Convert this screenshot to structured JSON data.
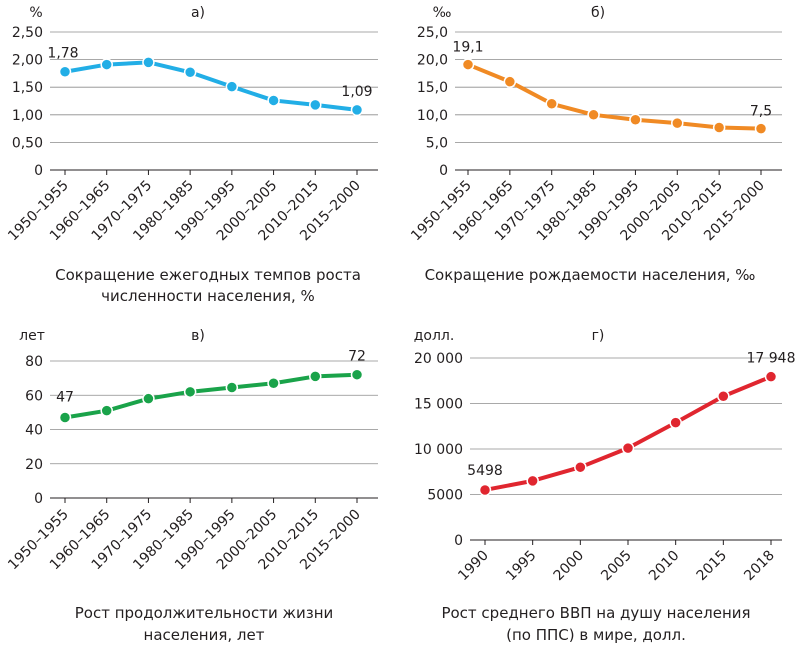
{
  "chart_data": [
    {
      "type": "line",
      "panel_label": "а)",
      "unit_label": "%",
      "categories": [
        "1950–1955",
        "1960–1965",
        "1970–1975",
        "1980–1985",
        "1990–1995",
        "2000–2005",
        "2010–2015",
        "2015–2000"
      ],
      "values": [
        1.78,
        1.91,
        1.95,
        1.77,
        1.51,
        1.26,
        1.18,
        1.09
      ],
      "data_labels": [
        {
          "index": 0,
          "text": "1,78"
        },
        {
          "index": 7,
          "text": "1,09"
        }
      ],
      "ylim": [
        0,
        2.5
      ],
      "yticks": [
        {
          "value": 0,
          "label": "0"
        },
        {
          "value": 0.5,
          "label": "0,50"
        },
        {
          "value": 1.0,
          "label": "1,00"
        },
        {
          "value": 1.5,
          "label": "1,50"
        },
        {
          "value": 2.0,
          "label": "2,00"
        },
        {
          "value": 2.5,
          "label": "2,50"
        }
      ],
      "grid": true,
      "color": "#22aee6",
      "caption": [
        "Сокращение ежегодных темпов роста",
        "численности населения, %"
      ]
    },
    {
      "type": "line",
      "panel_label": "б)",
      "unit_label": "‰",
      "categories": [
        "1950–1955",
        "1960–1965",
        "1970–1975",
        "1980–1985",
        "1990–1995",
        "2000–2005",
        "2010–2015",
        "2015–2000"
      ],
      "values": [
        19.1,
        16.0,
        12.0,
        10.0,
        9.1,
        8.5,
        7.7,
        7.5
      ],
      "data_labels": [
        {
          "index": 0,
          "text": "19,1"
        },
        {
          "index": 7,
          "text": "7,5"
        }
      ],
      "ylim": [
        0,
        25
      ],
      "yticks": [
        {
          "value": 0,
          "label": "0"
        },
        {
          "value": 5,
          "label": "5,0"
        },
        {
          "value": 10,
          "label": "10,0"
        },
        {
          "value": 15,
          "label": "15,0"
        },
        {
          "value": 20,
          "label": "20,0"
        },
        {
          "value": 25,
          "label": "25,0"
        }
      ],
      "grid": true,
      "color": "#f08a24",
      "caption": [
        "Сокращение рождаемости населения, ‰"
      ]
    },
    {
      "type": "line",
      "panel_label": "в)",
      "unit_label": "лет",
      "categories": [
        "1950–1955",
        "1960–1965",
        "1970–1975",
        "1980–1985",
        "1990–1995",
        "2000–2005",
        "2010–2015",
        "2015–2000"
      ],
      "values": [
        47,
        51,
        58,
        62,
        64.5,
        67,
        71,
        72
      ],
      "data_labels": [
        {
          "index": 0,
          "text": "47"
        },
        {
          "index": 7,
          "text": "72"
        }
      ],
      "ylim": [
        0,
        80
      ],
      "yticks": [
        {
          "value": 0,
          "label": "0"
        },
        {
          "value": 20,
          "label": "20"
        },
        {
          "value": 40,
          "label": "40"
        },
        {
          "value": 60,
          "label": "60"
        },
        {
          "value": 80,
          "label": "80"
        }
      ],
      "grid": true,
      "color": "#1aa34a",
      "caption": [
        "Рост продолжительности жизни",
        "населения, лет"
      ]
    },
    {
      "type": "line",
      "panel_label": "г)",
      "unit_label": "долл.",
      "categories": [
        "1990",
        "1995",
        "2000",
        "2005",
        "2010",
        "2015",
        "2018"
      ],
      "values": [
        5498,
        6500,
        8000,
        10100,
        12900,
        15800,
        17948
      ],
      "data_labels": [
        {
          "index": 0,
          "text": "5498"
        },
        {
          "index": 6,
          "text": "17 948"
        }
      ],
      "ylim": [
        0,
        20000
      ],
      "yticks": [
        {
          "value": 0,
          "label": "0"
        },
        {
          "value": 5000,
          "label": "5000"
        },
        {
          "value": 10000,
          "label": "10 000"
        },
        {
          "value": 15000,
          "label": "15 000"
        },
        {
          "value": 20000,
          "label": "20 000"
        }
      ],
      "grid": true,
      "color": "#e0262f",
      "caption": [
        "Рост среднего ВВП на душу населения",
        "(по ППС) в мире, долл."
      ]
    }
  ]
}
